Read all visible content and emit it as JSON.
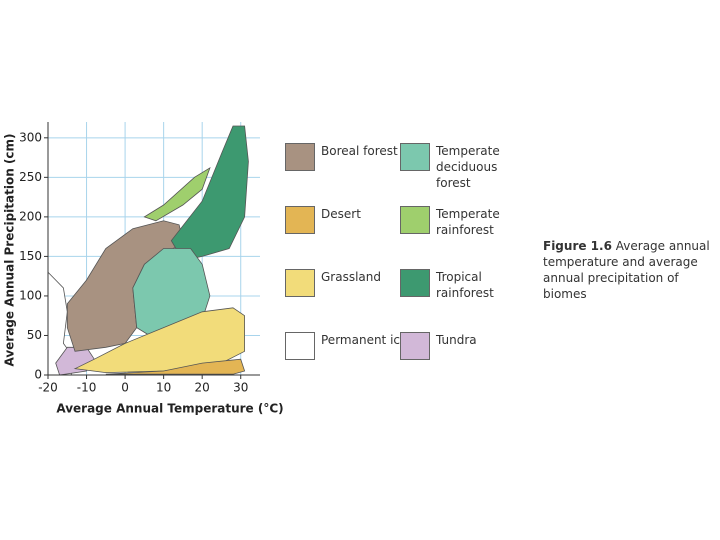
{
  "chart_data": {
    "type": "region",
    "x_label": "Average Annual Temperature (°C)",
    "y_label": "Average Annual Precipitation (cm)",
    "caption_label": "Figure 1.6",
    "caption_text": "Average annual temperature and average annual precipitation of biomes",
    "xlim": [
      -20,
      35
    ],
    "ylim": [
      0,
      320
    ],
    "xticks": [
      -20,
      -10,
      0,
      10,
      20,
      30
    ],
    "yticks": [
      0,
      50,
      100,
      150,
      200,
      250,
      300
    ],
    "grid": true,
    "series": [
      {
        "name": "Boreal forest",
        "color": "#a89281",
        "x": [
          -15,
          -10,
          -5,
          2,
          10,
          14,
          15,
          10,
          5,
          2,
          3,
          0,
          -5,
          -13,
          -15
        ],
        "values": [
          90,
          120,
          160,
          185,
          195,
          190,
          170,
          150,
          140,
          110,
          60,
          40,
          35,
          30,
          60
        ]
      },
      {
        "name": "Desert",
        "color": "#e3b554",
        "x": [
          -5,
          10,
          20,
          30,
          31,
          28
        ],
        "values": [
          1,
          5,
          15,
          20,
          5,
          1
        ]
      },
      {
        "name": "Grassland",
        "color": "#f2dc7a",
        "x": [
          -13,
          -8,
          0,
          10,
          20,
          28,
          31,
          31,
          25,
          10,
          -5
        ],
        "values": [
          8,
          20,
          40,
          60,
          80,
          85,
          75,
          30,
          15,
          5,
          3
        ]
      },
      {
        "name": "Permanent ice",
        "color": "#ffffff",
        "x": [
          -20,
          -20,
          -16,
          -15,
          -16,
          -13,
          -14
        ],
        "values": [
          0,
          130,
          110,
          80,
          40,
          20,
          0
        ]
      },
      {
        "name": "Temperate deciduous forest",
        "color": "#7cc8ae",
        "x": [
          3,
          2,
          5,
          10,
          17,
          20,
          22,
          20,
          15,
          8
        ],
        "values": [
          60,
          110,
          140,
          160,
          160,
          140,
          100,
          70,
          50,
          45
        ]
      },
      {
        "name": "Temperate rainforest",
        "color": "#9fcf6d",
        "x": [
          5,
          10,
          18,
          22,
          20,
          15,
          8
        ],
        "values": [
          200,
          215,
          250,
          262,
          235,
          215,
          195
        ]
      },
      {
        "name": "Tropical rainforest",
        "color": "#3d9970",
        "x": [
          15,
          12,
          20,
          25,
          28,
          31,
          32,
          31,
          27,
          20
        ],
        "values": [
          145,
          170,
          220,
          280,
          315,
          315,
          270,
          200,
          160,
          150
        ]
      },
      {
        "name": "Tundra",
        "color": "#d2b8d8",
        "x": [
          -17,
          -18,
          -15,
          -10,
          -8,
          -10
        ],
        "values": [
          0,
          15,
          35,
          35,
          20,
          5
        ]
      }
    ]
  }
}
